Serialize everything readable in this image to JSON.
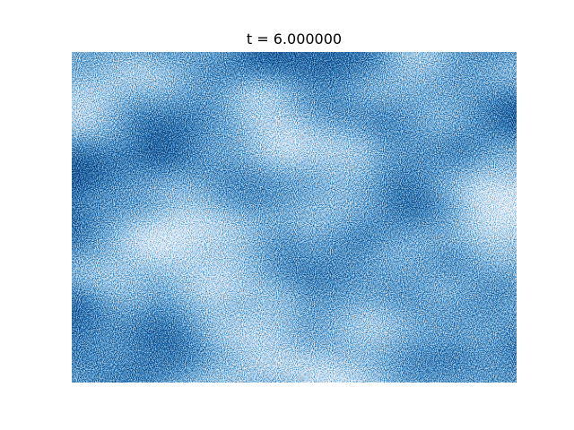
{
  "title": "t = 6.000000"
}
